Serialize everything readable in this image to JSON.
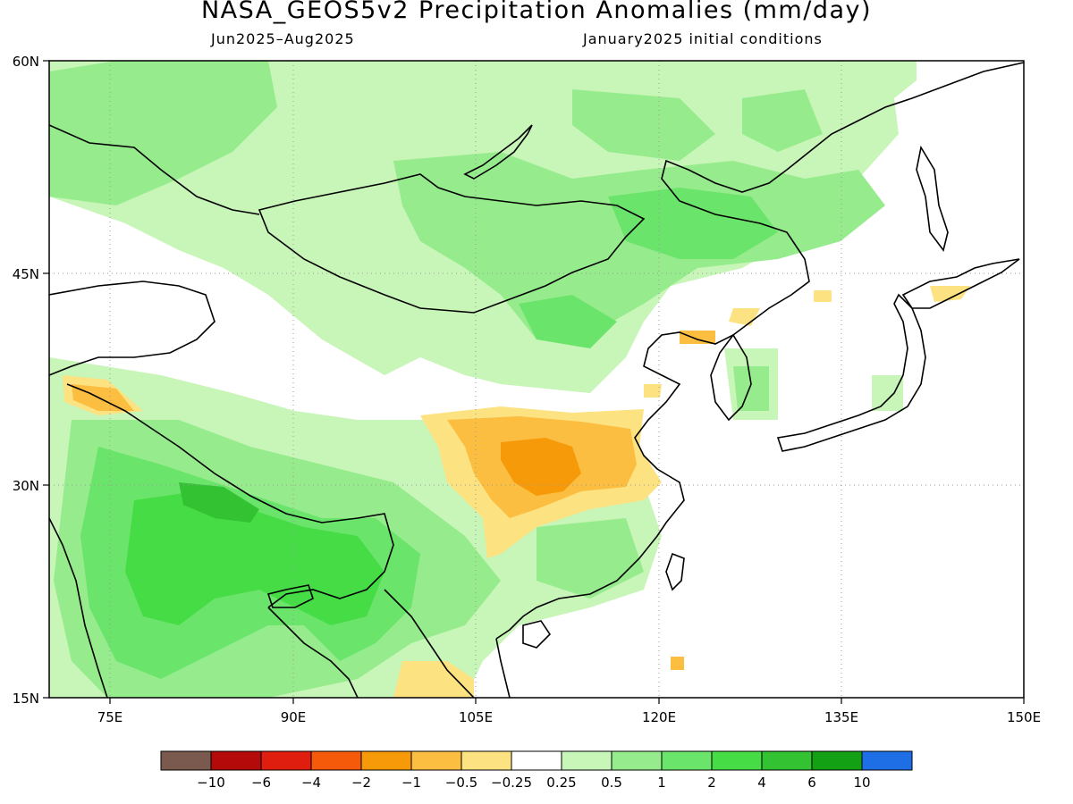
{
  "title": "NASA_GEOS5v2 Precipitation Anomalies (mm/day)",
  "period": "Jun2025–Aug2025",
  "initial_conditions": "January2025 initial conditions",
  "map": {
    "lon_ticks": [
      {
        "value": 75,
        "label": "75E"
      },
      {
        "value": 90,
        "label": "90E"
      },
      {
        "value": 105,
        "label": "105E"
      },
      {
        "value": 120,
        "label": "120E"
      },
      {
        "value": 135,
        "label": "135E"
      },
      {
        "value": 150,
        "label": "150E"
      }
    ],
    "lat_ticks": [
      {
        "value": 60,
        "label": "60N"
      },
      {
        "value": 45,
        "label": "45N"
      },
      {
        "value": 30,
        "label": "30N"
      },
      {
        "value": 15,
        "label": "15N"
      }
    ],
    "lon_range": [
      70,
      150
    ],
    "lat_range": [
      15,
      60
    ]
  },
  "colorbar": {
    "colors": [
      "#7a5a4e",
      "#b40a0a",
      "#e01e10",
      "#f55a0a",
      "#f79a0a",
      "#fbbe40",
      "#fde282",
      "#ffffff",
      "#c8f5b8",
      "#96ec8c",
      "#6ae46a",
      "#46dc46",
      "#32c232",
      "#14a014",
      "#1e6ee6"
    ],
    "labels": [
      "−10",
      "−6",
      "−4",
      "−2",
      "−1",
      "−0.5",
      "−0.25",
      "0.25",
      "0.5",
      "1",
      "2",
      "4",
      "6",
      "10"
    ]
  },
  "colors": {
    "wet_light": "#c8f5b8",
    "wet_mid": "#96ec8c",
    "wet_strong": "#6ae46a",
    "wet_heavy": "#46dc46",
    "wet_extreme": "#32c232",
    "dry_light": "#fde282",
    "dry_mid": "#fbbe40",
    "dry_strong": "#f79a0a"
  }
}
